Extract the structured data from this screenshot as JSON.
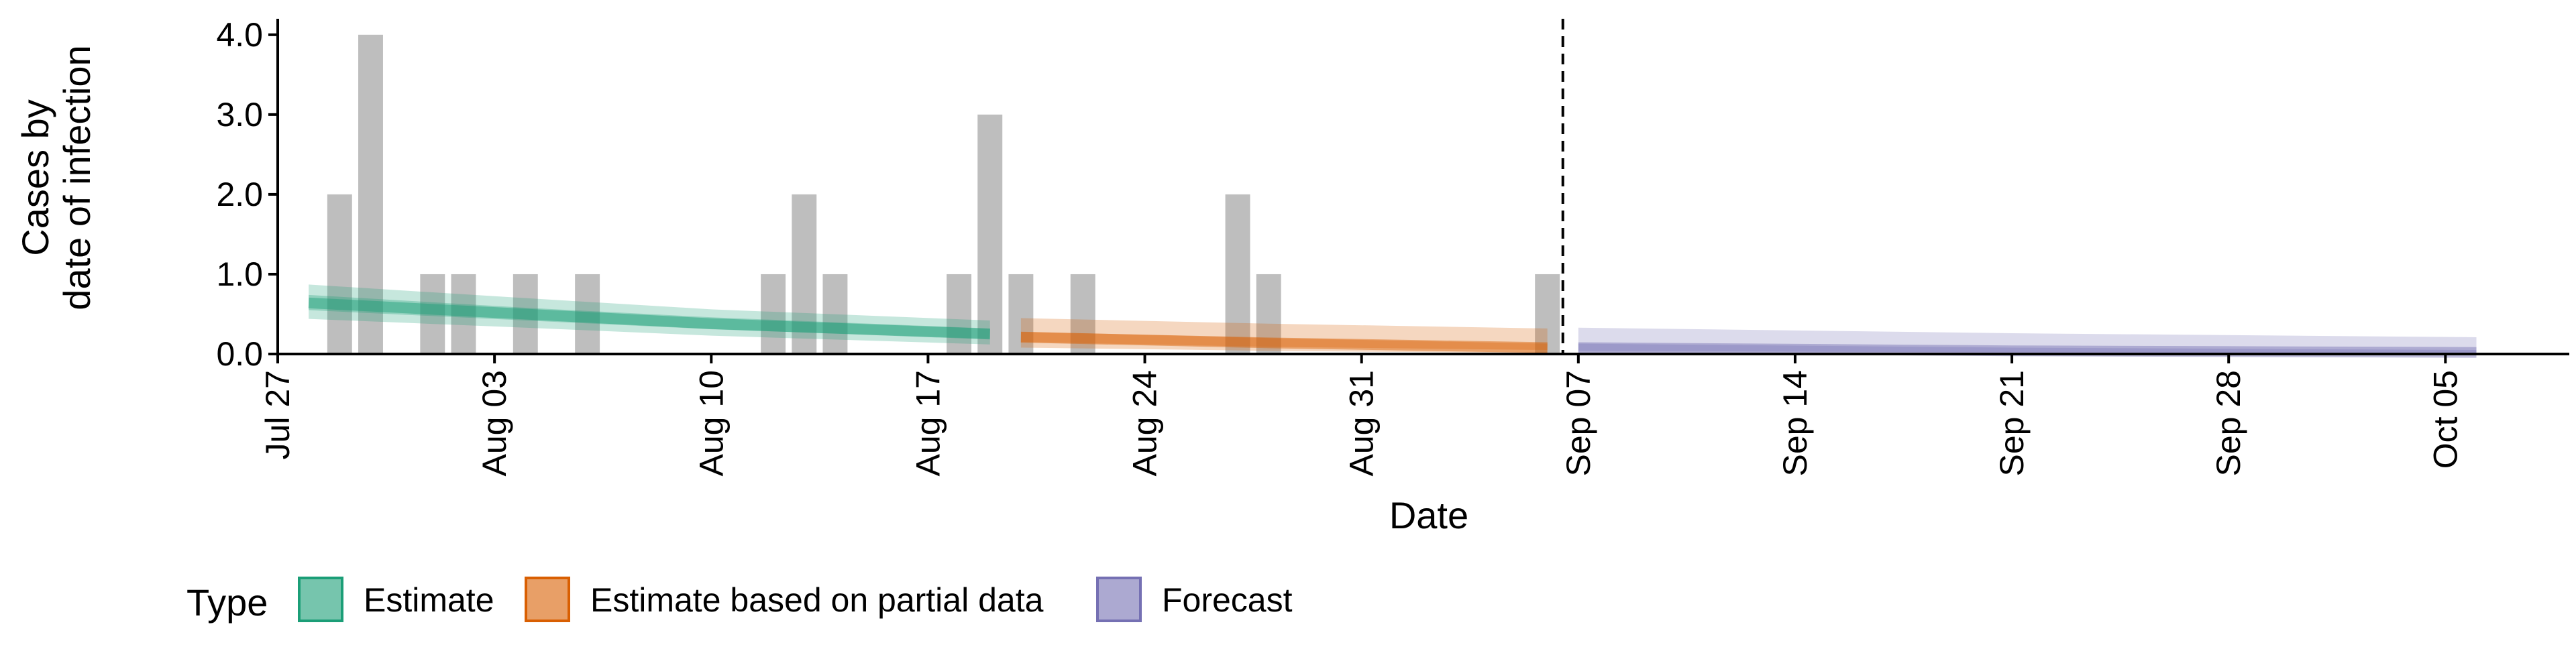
{
  "chart_data": {
    "type": "bar",
    "xlabel": "Date",
    "ylabel": [
      "Cases by",
      "date of infection"
    ],
    "ylim": [
      0,
      4.2
    ],
    "yticks": [
      {
        "value": 0,
        "label": "0.0"
      },
      {
        "value": 1,
        "label": "1.0"
      },
      {
        "value": 2,
        "label": "2.0"
      },
      {
        "value": 3,
        "label": "3.0"
      },
      {
        "value": 4,
        "label": "4.0"
      }
    ],
    "xlim": [
      "2020-07-27",
      "2020-10-09"
    ],
    "xticks": [
      {
        "date": "2020-07-27",
        "label": "Jul 27"
      },
      {
        "date": "2020-08-03",
        "label": "Aug 03"
      },
      {
        "date": "2020-08-10",
        "label": "Aug 10"
      },
      {
        "date": "2020-08-17",
        "label": "Aug 17"
      },
      {
        "date": "2020-08-24",
        "label": "Aug 24"
      },
      {
        "date": "2020-08-31",
        "label": "Aug 31"
      },
      {
        "date": "2020-09-07",
        "label": "Sep 07"
      },
      {
        "date": "2020-09-14",
        "label": "Sep 14"
      },
      {
        "date": "2020-09-21",
        "label": "Sep 21"
      },
      {
        "date": "2020-09-28",
        "label": "Sep 28"
      },
      {
        "date": "2020-10-05",
        "label": "Oct 05"
      }
    ],
    "grid": false,
    "bar_color": "#BEBEBE",
    "observed_cases": [
      {
        "date": "2020-07-29",
        "value": 2
      },
      {
        "date": "2020-07-30",
        "value": 4
      },
      {
        "date": "2020-08-01",
        "value": 1
      },
      {
        "date": "2020-08-02",
        "value": 1
      },
      {
        "date": "2020-08-04",
        "value": 1
      },
      {
        "date": "2020-08-06",
        "value": 1
      },
      {
        "date": "2020-08-12",
        "value": 1
      },
      {
        "date": "2020-08-13",
        "value": 2
      },
      {
        "date": "2020-08-14",
        "value": 1
      },
      {
        "date": "2020-08-18",
        "value": 1
      },
      {
        "date": "2020-08-19",
        "value": 3
      },
      {
        "date": "2020-08-20",
        "value": 1
      },
      {
        "date": "2020-08-22",
        "value": 1
      },
      {
        "date": "2020-08-27",
        "value": 2
      },
      {
        "date": "2020-08-28",
        "value": 1
      },
      {
        "date": "2020-09-06",
        "value": 1
      }
    ],
    "forecast_date": "2020-09-06",
    "series": [
      {
        "name": "Estimate",
        "color": "#1B9E77",
        "points": [
          {
            "date": "2020-07-28",
            "median": 0.64,
            "lower50": 0.55,
            "upper50": 0.74,
            "lower90": 0.44,
            "upper90": 0.87
          },
          {
            "date": "2020-08-04",
            "median": 0.5,
            "lower50": 0.42,
            "upper50": 0.58,
            "lower90": 0.33,
            "upper90": 0.7
          },
          {
            "date": "2020-08-10",
            "median": 0.38,
            "lower50": 0.31,
            "upper50": 0.46,
            "lower90": 0.23,
            "upper90": 0.56
          },
          {
            "date": "2020-08-19",
            "median": 0.25,
            "lower50": 0.19,
            "upper50": 0.32,
            "lower90": 0.12,
            "upper90": 0.42
          }
        ]
      },
      {
        "name": "Estimate based on partial data",
        "color": "#D95F02",
        "points": [
          {
            "date": "2020-08-20",
            "median": 0.21,
            "lower50": 0.15,
            "upper50": 0.28,
            "lower90": 0.08,
            "upper90": 0.45
          },
          {
            "date": "2020-08-28",
            "median": 0.14,
            "lower50": 0.09,
            "upper50": 0.2,
            "lower90": 0.04,
            "upper90": 0.38
          },
          {
            "date": "2020-09-06",
            "median": 0.08,
            "lower50": 0.05,
            "upper50": 0.13,
            "lower90": 0.01,
            "upper90": 0.32
          }
        ]
      },
      {
        "name": "Forecast",
        "color": "#7570B3",
        "points": [
          {
            "date": "2020-09-07",
            "median": 0.08,
            "lower50": 0.04,
            "upper50": 0.13,
            "lower90": 0.0,
            "upper90": 0.33
          },
          {
            "date": "2020-09-21",
            "median": 0.04,
            "lower50": 0.02,
            "upper50": 0.08,
            "lower90": 0.0,
            "upper90": 0.26
          },
          {
            "date": "2020-10-06",
            "median": 0.02,
            "lower50": 0.01,
            "upper50": 0.05,
            "lower90": 0.0,
            "upper90": 0.21
          }
        ]
      }
    ],
    "legend": {
      "title": "Type",
      "position": "bottom",
      "items": [
        {
          "label": "Estimate",
          "color": "#1B9E77"
        },
        {
          "label": "Estimate based on partial data",
          "color": "#D95F02"
        },
        {
          "label": "Forecast",
          "color": "#7570B3"
        }
      ]
    }
  }
}
